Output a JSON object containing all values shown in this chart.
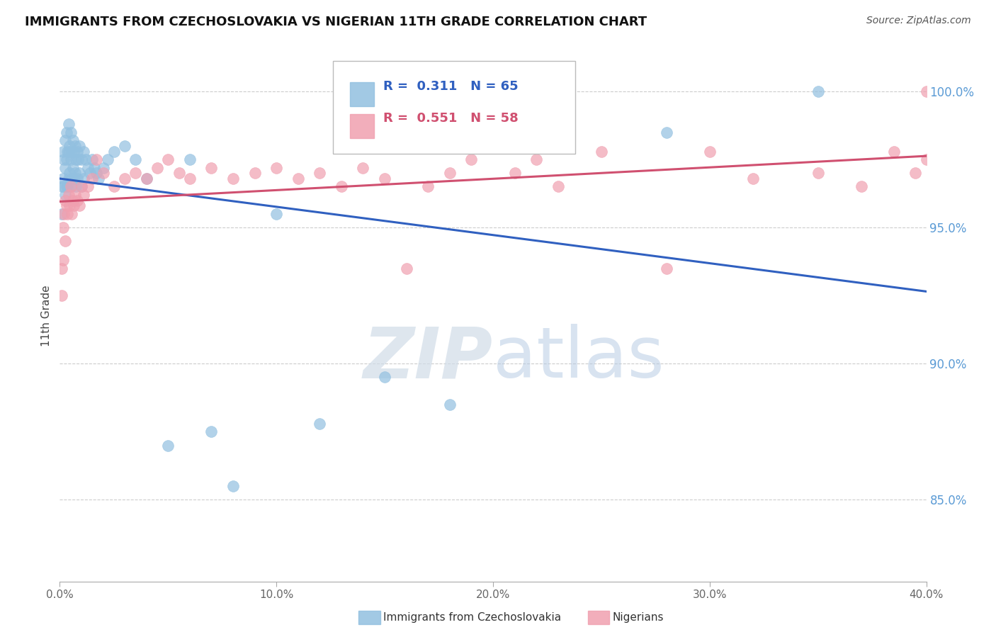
{
  "title": "IMMIGRANTS FROM CZECHOSLOVAKIA VS NIGERIAN 11TH GRADE CORRELATION CHART",
  "source": "Source: ZipAtlas.com",
  "ylabel": "11th Grade",
  "watermark_zip": "ZIP",
  "watermark_atlas": "atlas",
  "r_blue": 0.311,
  "n_blue": 65,
  "r_pink": 0.551,
  "n_pink": 58,
  "xmin": 0.0,
  "xmax": 40.0,
  "ymin": 82.0,
  "ymax": 101.5,
  "yticks": [
    85.0,
    90.0,
    95.0,
    100.0
  ],
  "xticks": [
    0.0,
    10.0,
    20.0,
    30.0,
    40.0
  ],
  "blue_color": "#92c0e0",
  "pink_color": "#f0a0b0",
  "blue_line_color": "#3060c0",
  "pink_line_color": "#d05070",
  "legend_label_blue": "Immigrants from Czechoslovakia",
  "legend_label_pink": "Nigerians",
  "blue_x": [
    0.1,
    0.1,
    0.15,
    0.15,
    0.2,
    0.2,
    0.25,
    0.25,
    0.25,
    0.3,
    0.3,
    0.3,
    0.35,
    0.35,
    0.4,
    0.4,
    0.4,
    0.45,
    0.45,
    0.5,
    0.5,
    0.5,
    0.55,
    0.55,
    0.6,
    0.6,
    0.65,
    0.65,
    0.7,
    0.7,
    0.75,
    0.75,
    0.8,
    0.8,
    0.85,
    0.9,
    0.9,
    1.0,
    1.0,
    1.1,
    1.1,
    1.2,
    1.3,
    1.4,
    1.5,
    1.6,
    1.7,
    1.8,
    2.0,
    2.2,
    2.5,
    3.0,
    3.5,
    4.0,
    5.0,
    6.0,
    7.0,
    8.0,
    10.0,
    12.0,
    15.0,
    18.0,
    22.0,
    28.0,
    35.0
  ],
  "blue_y": [
    96.5,
    95.5,
    97.8,
    96.8,
    97.5,
    96.5,
    98.2,
    97.2,
    96.2,
    98.5,
    97.5,
    96.5,
    97.8,
    96.5,
    98.8,
    97.8,
    96.8,
    98.0,
    97.0,
    98.5,
    97.5,
    96.5,
    97.8,
    96.8,
    98.2,
    97.2,
    97.8,
    96.8,
    98.0,
    97.0,
    97.5,
    96.5,
    97.8,
    96.8,
    97.5,
    98.0,
    97.0,
    97.5,
    96.5,
    97.8,
    96.8,
    97.5,
    97.2,
    97.0,
    97.5,
    97.2,
    97.0,
    96.8,
    97.2,
    97.5,
    97.8,
    98.0,
    97.5,
    96.8,
    87.0,
    97.5,
    87.5,
    85.5,
    95.5,
    87.8,
    89.5,
    88.5,
    98.0,
    98.5,
    100.0
  ],
  "pink_x": [
    0.1,
    0.1,
    0.15,
    0.15,
    0.2,
    0.25,
    0.25,
    0.3,
    0.35,
    0.4,
    0.45,
    0.5,
    0.55,
    0.6,
    0.65,
    0.7,
    0.8,
    0.9,
    1.0,
    1.1,
    1.3,
    1.5,
    1.7,
    2.0,
    2.5,
    3.0,
    3.5,
    4.0,
    4.5,
    5.0,
    5.5,
    6.0,
    7.0,
    8.0,
    9.0,
    10.0,
    11.0,
    12.0,
    13.0,
    14.0,
    15.0,
    16.0,
    17.0,
    18.0,
    19.0,
    21.0,
    22.0,
    23.0,
    25.0,
    28.0,
    30.0,
    32.0,
    35.0,
    37.0,
    38.5,
    39.5,
    40.0,
    40.0
  ],
  "pink_y": [
    93.5,
    92.5,
    95.0,
    93.8,
    95.5,
    96.0,
    94.5,
    95.8,
    95.5,
    96.2,
    95.8,
    96.5,
    95.5,
    96.0,
    95.8,
    96.2,
    96.0,
    95.8,
    96.5,
    96.2,
    96.5,
    96.8,
    97.5,
    97.0,
    96.5,
    96.8,
    97.0,
    96.8,
    97.2,
    97.5,
    97.0,
    96.8,
    97.2,
    96.8,
    97.0,
    97.2,
    96.8,
    97.0,
    96.5,
    97.2,
    96.8,
    93.5,
    96.5,
    97.0,
    97.5,
    97.0,
    97.5,
    96.5,
    97.8,
    93.5,
    97.8,
    96.8,
    97.0,
    96.5,
    97.8,
    97.0,
    97.5,
    100.0
  ]
}
